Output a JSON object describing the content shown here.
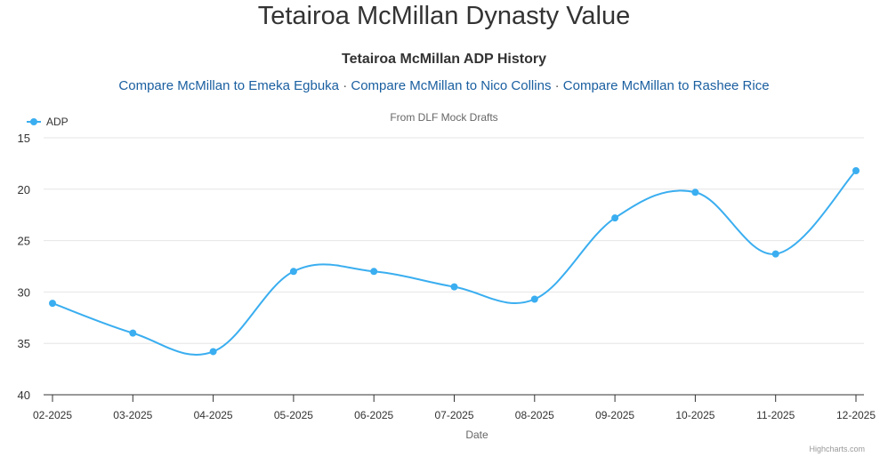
{
  "page": {
    "title": "Tetairoa McMillan Dynasty Value",
    "compare_links": [
      "Compare McMillan to Emeka Egbuka",
      "Compare McMillan to Nico Collins",
      "Compare McMillan to Rashee Rice"
    ],
    "separator": "·",
    "credits": "Highcharts.com"
  },
  "chart_data": {
    "type": "line",
    "title": "Tetairoa McMillan ADP History",
    "subtitle": "From DLF Mock Drafts",
    "xlabel": "Date",
    "ylabel": "",
    "categories": [
      "02-2025",
      "03-2025",
      "04-2025",
      "05-2025",
      "06-2025",
      "07-2025",
      "08-2025",
      "09-2025",
      "10-2025",
      "11-2025",
      "12-2025"
    ],
    "series": [
      {
        "name": "ADP",
        "color": "#3aaef0",
        "values": [
          31.1,
          34.0,
          35.8,
          28.0,
          28.0,
          29.5,
          30.7,
          22.8,
          20.3,
          26.3,
          18.2
        ]
      }
    ],
    "ylim": [
      15,
      40
    ],
    "yticks": [
      15,
      20,
      25,
      30,
      35,
      40
    ],
    "y_reversed": true,
    "smooth": true,
    "grid": true,
    "legend_position": "top-left"
  }
}
